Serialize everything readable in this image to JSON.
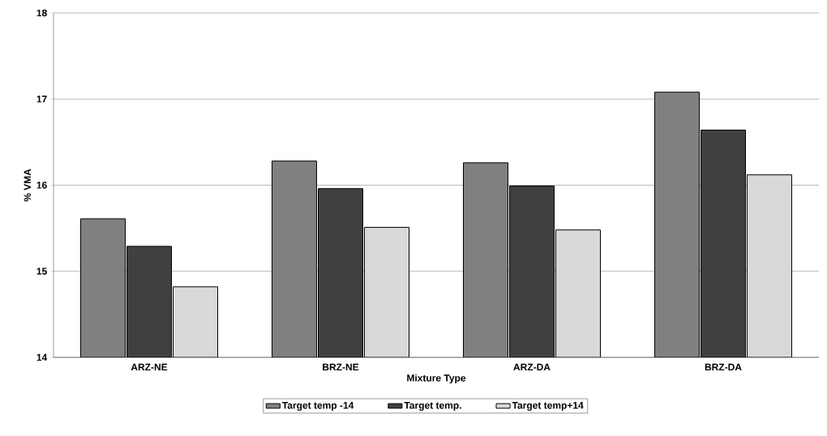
{
  "chart_data": {
    "type": "bar",
    "xlabel": "Mixture Type",
    "ylabel": "% VMA",
    "categories": [
      "ARZ-NE",
      "BRZ-NE",
      "ARZ-DA",
      "BRZ-DA"
    ],
    "series": [
      {
        "name": "Target temp -14",
        "color": "#808080",
        "values": [
          15.61,
          16.28,
          16.26,
          17.08
        ]
      },
      {
        "name": "Target temp.",
        "color": "#404040",
        "values": [
          15.29,
          15.96,
          15.99,
          16.64
        ]
      },
      {
        "name": "Target temp+14",
        "color": "#d9d9d9",
        "values": [
          14.82,
          15.51,
          15.48,
          16.12
        ]
      }
    ],
    "ylim": [
      14,
      18
    ],
    "yticks": [
      14,
      15,
      16,
      17,
      18
    ],
    "grid": "y",
    "legend": "bottom"
  }
}
